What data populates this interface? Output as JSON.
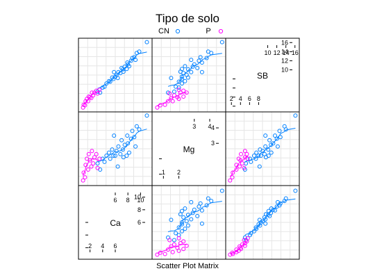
{
  "chart_data": {
    "type": "scatter",
    "title": "Tipo de solo",
    "xlabel": "Scatter Plot Matrix",
    "smoother": "loess",
    "grid": true,
    "legend_position": "top",
    "groups": [
      {
        "name": "CN",
        "color": "#0080ff"
      },
      {
        "name": "P",
        "color": "#ff00ff"
      }
    ],
    "variables": [
      {
        "name": "Ca",
        "range": [
          0.5,
          11.5
        ],
        "ticks_low": [
          2,
          4,
          6
        ],
        "ticks_high": [
          6,
          8,
          10
        ]
      },
      {
        "name": "Mg",
        "range": [
          0.4,
          4.9
        ],
        "ticks_low": [
          1,
          2
        ],
        "ticks_high": [
          3,
          4
        ]
      },
      {
        "name": "SB",
        "range": [
          1.2,
          16.5
        ],
        "ticks_low": [
          2,
          4,
          6,
          8
        ],
        "ticks_high": [
          10,
          12,
          14,
          16
        ]
      }
    ],
    "panel_ticks": {
      "Ca_vs_Mg": {
        "y": [
          2,
          4,
          6
        ]
      },
      "Mg_vs_SB": {
        "y": [
          2,
          4,
          6,
          8
        ]
      },
      "Ca_vs_SB": {
        "y": [
          2,
          4,
          6,
          8,
          10,
          12,
          14,
          16
        ]
      }
    },
    "points": {
      "CN": [
        {
          "Ca": 3.2,
          "Mg": 1.7,
          "SB": 5.2
        },
        {
          "Ca": 3.6,
          "Mg": 1.3,
          "SB": 5.0
        },
        {
          "Ca": 4.0,
          "Mg": 2.0,
          "SB": 6.1
        },
        {
          "Ca": 4.3,
          "Mg": 1.8,
          "SB": 6.3
        },
        {
          "Ca": 4.6,
          "Mg": 2.2,
          "SB": 7.0
        },
        {
          "Ca": 5.0,
          "Mg": 2.4,
          "SB": 7.5
        },
        {
          "Ca": 5.2,
          "Mg": 2.0,
          "SB": 7.4
        },
        {
          "Ca": 5.5,
          "Mg": 2.6,
          "SB": 8.3
        },
        {
          "Ca": 5.7,
          "Mg": 2.2,
          "SB": 8.0
        },
        {
          "Ca": 5.8,
          "Mg": 3.5,
          "SB": 9.5
        },
        {
          "Ca": 6.0,
          "Mg": 2.2,
          "SB": 8.5
        },
        {
          "Ca": 6.2,
          "Mg": 2.5,
          "SB": 8.9
        },
        {
          "Ca": 6.4,
          "Mg": 1.5,
          "SB": 8.2
        },
        {
          "Ca": 6.5,
          "Mg": 2.8,
          "SB": 9.5
        },
        {
          "Ca": 6.8,
          "Mg": 2.3,
          "SB": 9.3
        },
        {
          "Ca": 7.0,
          "Mg": 3.2,
          "SB": 10.4
        },
        {
          "Ca": 7.2,
          "Mg": 2.6,
          "SB": 10.1
        },
        {
          "Ca": 7.3,
          "Mg": 2.1,
          "SB": 9.6
        },
        {
          "Ca": 7.5,
          "Mg": 2.9,
          "SB": 10.7
        },
        {
          "Ca": 7.8,
          "Mg": 2.2,
          "SB": 10.2
        },
        {
          "Ca": 7.9,
          "Mg": 3.5,
          "SB": 11.6
        },
        {
          "Ca": 8.0,
          "Mg": 3.0,
          "SB": 11.2
        },
        {
          "Ca": 8.2,
          "Mg": 2.4,
          "SB": 10.8
        },
        {
          "Ca": 8.5,
          "Mg": 3.3,
          "SB": 12.0
        },
        {
          "Ca": 8.7,
          "Mg": 3.8,
          "SB": 12.6
        },
        {
          "Ca": 9.0,
          "Mg": 3.4,
          "SB": 12.8
        },
        {
          "Ca": 9.2,
          "Mg": 2.8,
          "SB": 12.2
        },
        {
          "Ca": 9.4,
          "Mg": 4.1,
          "SB": 13.7
        },
        {
          "Ca": 9.8,
          "Mg": 3.9,
          "SB": 14.0
        },
        {
          "Ca": 11.0,
          "Mg": 4.8,
          "SB": 16.1
        }
      ],
      "P": [
        {
          "Ca": 0.9,
          "Mg": 0.6,
          "SB": 1.7
        },
        {
          "Ca": 1.0,
          "Mg": 1.1,
          "SB": 2.3
        },
        {
          "Ca": 1.2,
          "Mg": 0.8,
          "SB": 2.2
        },
        {
          "Ca": 1.3,
          "Mg": 1.6,
          "SB": 3.1
        },
        {
          "Ca": 1.5,
          "Mg": 2.0,
          "SB": 3.6
        },
        {
          "Ca": 1.7,
          "Mg": 1.3,
          "SB": 3.1
        },
        {
          "Ca": 1.8,
          "Mg": 2.3,
          "SB": 4.1
        },
        {
          "Ca": 2.0,
          "Mg": 1.9,
          "SB": 4.0
        },
        {
          "Ca": 2.2,
          "Mg": 1.5,
          "SB": 3.8
        },
        {
          "Ca": 2.3,
          "Mg": 2.5,
          "SB": 5.0
        },
        {
          "Ca": 2.5,
          "Mg": 1.7,
          "SB": 4.4
        },
        {
          "Ca": 2.7,
          "Mg": 2.1,
          "SB": 5.0
        },
        {
          "Ca": 3.0,
          "Mg": 2.3,
          "SB": 5.4
        },
        {
          "Ca": 3.2,
          "Mg": 1.4,
          "SB": 4.8
        },
        {
          "Ca": 3.5,
          "Mg": 2.0,
          "SB": 5.6
        }
      ]
    }
  }
}
